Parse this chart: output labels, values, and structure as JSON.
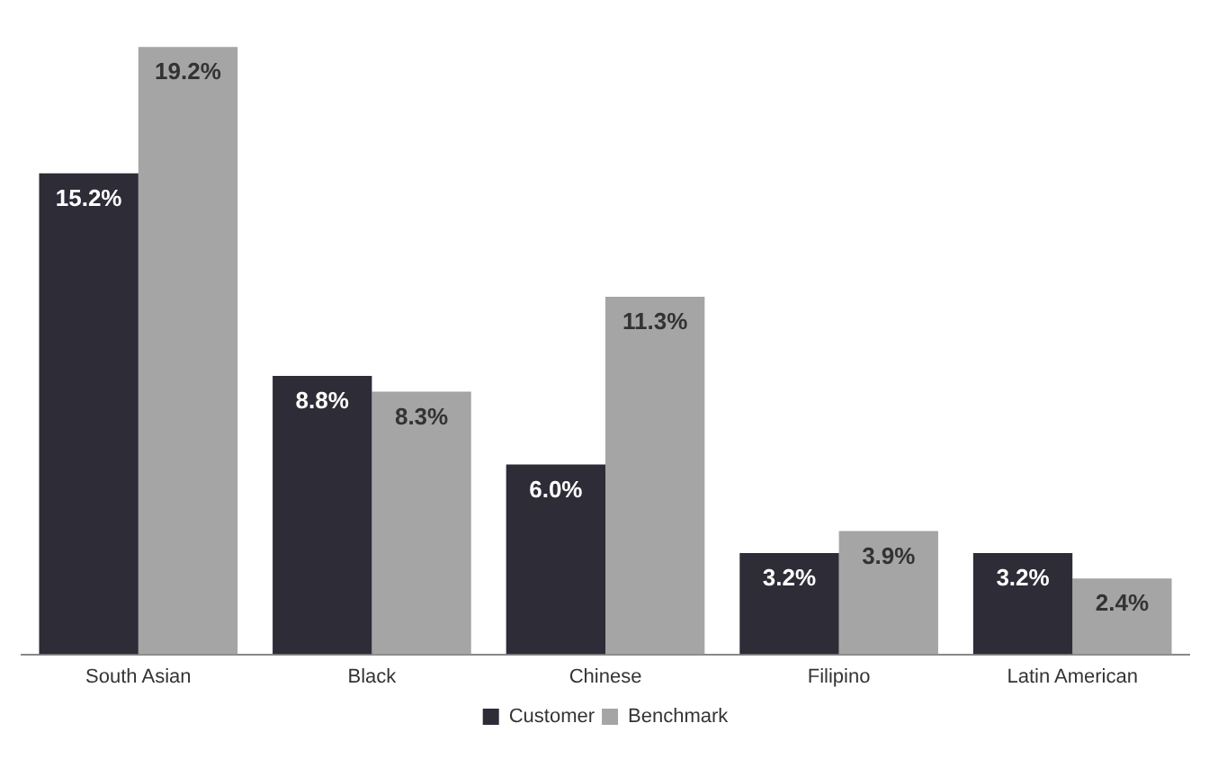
{
  "chart_data": {
    "type": "bar",
    "categories": [
      "South Asian",
      "Black",
      "Chinese",
      "Filipino",
      "Latin American"
    ],
    "series": [
      {
        "name": "Customer",
        "color": "#2d2c37",
        "values": [
          15.2,
          8.8,
          6.0,
          3.2,
          3.2
        ],
        "value_labels": [
          "15.2%",
          "8.8%",
          "6.0%",
          "3.2%",
          "3.2%"
        ]
      },
      {
        "name": "Benchmark",
        "color": "#a5a5a5",
        "values": [
          19.2,
          8.3,
          11.3,
          3.9,
          2.4
        ],
        "value_labels": [
          "19.2%",
          "8.3%",
          "11.3%",
          "3.9%",
          "2.4%"
        ]
      }
    ],
    "legend": "bottom",
    "grid": false
  }
}
